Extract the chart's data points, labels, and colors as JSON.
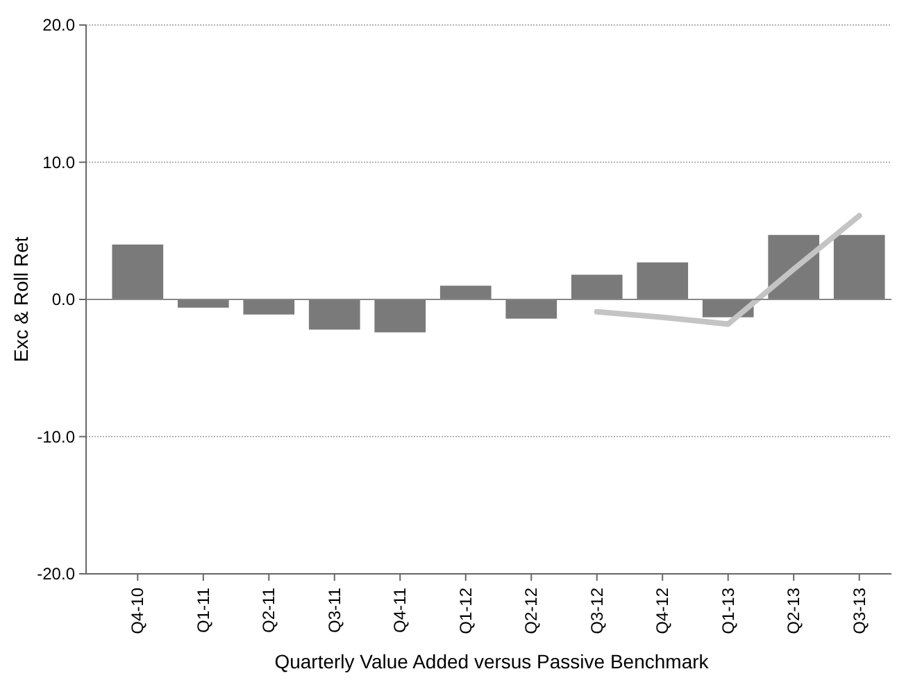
{
  "chart_data": {
    "type": "bar",
    "xlabel": "Quarterly Value Added versus Passive Benchmark",
    "ylabel": "Exc & Roll Ret",
    "categories": [
      "Q4-10",
      "Q1-11",
      "Q2-11",
      "Q3-11",
      "Q4-11",
      "Q1-12",
      "Q2-12",
      "Q3-12",
      "Q4-12",
      "Q1-13",
      "Q2-13",
      "Q3-13"
    ],
    "series": [
      {
        "color": "#7a7a7a",
        "values": [
          4.0,
          -0.6,
          -1.1,
          -2.2,
          -2.4,
          1.0,
          -1.4,
          1.8,
          2.7,
          -1.3,
          4.7,
          4.7
        ]
      },
      {
        "type": "line",
        "color": "#c4c4c4",
        "values": [
          null,
          null,
          null,
          null,
          null,
          null,
          null,
          -0.9,
          -1.3,
          -1.8,
          2.2,
          6.1
        ]
      }
    ],
    "ylim": [
      -20,
      20
    ],
    "yticks": [
      {
        "value": -20,
        "label": "-20.0"
      },
      {
        "value": -10,
        "label": "-10.0"
      },
      {
        "value": 0,
        "label": "0.0"
      },
      {
        "value": 10,
        "label": "10.0"
      },
      {
        "value": 20,
        "label": "20.0"
      }
    ],
    "grid": "y"
  }
}
